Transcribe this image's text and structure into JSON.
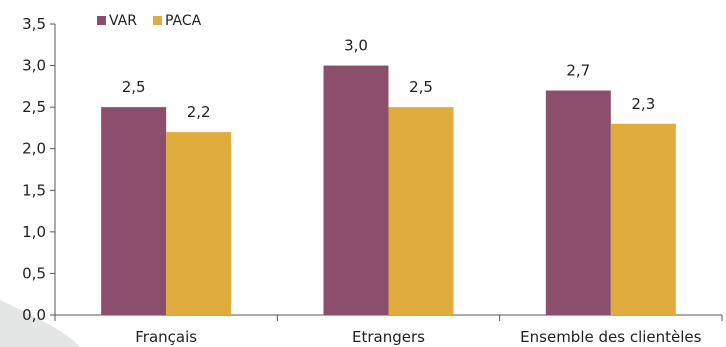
{
  "chart_data": {
    "type": "bar",
    "categories": [
      "Français",
      "Etrangers",
      "Ensemble des clientèles"
    ],
    "series": [
      {
        "name": "VAR",
        "values": [
          2.5,
          3.0,
          2.7
        ],
        "labels": [
          "2,5",
          "3,0",
          "2,7"
        ],
        "color": "#8B4F6C"
      },
      {
        "name": "PACA",
        "values": [
          2.2,
          2.5,
          2.3
        ],
        "labels": [
          "2,2",
          "2,5",
          "2,3"
        ],
        "color": "#E0AC3D"
      }
    ],
    "yticks": [
      0,
      0.5,
      1.0,
      1.5,
      2.0,
      2.5,
      3.0,
      3.5
    ],
    "ytick_labels": [
      "0,0",
      "0,5",
      "1,0",
      "1,5",
      "2,0",
      "2,5",
      "3,0",
      "3,5"
    ],
    "ylim": [
      0,
      3.5
    ],
    "title": "",
    "xlabel": "",
    "ylabel": "",
    "grid": false,
    "legend_position": "top-left",
    "background_color": "#ffffff",
    "corner_decoration_color": "#E4E6E6"
  }
}
